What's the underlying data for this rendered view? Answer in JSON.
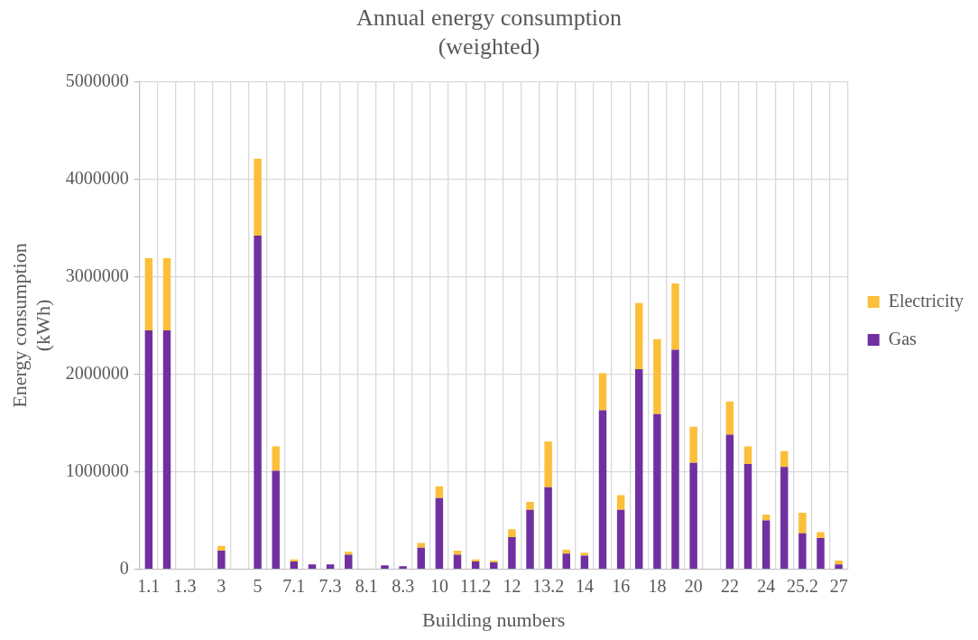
{
  "chart_data": {
    "type": "bar",
    "title": "Annual energy consumption\n(weighted)",
    "xlabel": "Building numbers",
    "ylabel": "Energy consumption\n(kWh)",
    "categories": [
      "1.1",
      null,
      "1.3",
      null,
      "3",
      null,
      "5",
      null,
      "7.1",
      null,
      "7.3",
      null,
      "8.1",
      null,
      "8.3",
      null,
      "10",
      null,
      "11.2",
      null,
      "12",
      null,
      "13.2",
      null,
      "14",
      null,
      "16",
      null,
      "18",
      null,
      "20",
      null,
      "22",
      null,
      "24",
      null,
      "25.2",
      null,
      "27"
    ],
    "stacked": true,
    "series": [
      {
        "name": "Gas",
        "color": "#7030a0",
        "values": [
          2450000,
          2450000,
          null,
          null,
          190000,
          null,
          3420000,
          1010000,
          80000,
          50000,
          50000,
          150000,
          null,
          40000,
          30000,
          220000,
          730000,
          150000,
          80000,
          70000,
          330000,
          610000,
          840000,
          160000,
          140000,
          1630000,
          610000,
          2050000,
          1590000,
          2250000,
          1090000,
          null,
          1380000,
          1080000,
          500000,
          1050000,
          370000,
          320000,
          50000
        ]
      },
      {
        "name": "Electricity",
        "color": "#fcbf3a",
        "values": [
          740000,
          740000,
          null,
          null,
          50000,
          null,
          790000,
          250000,
          20000,
          null,
          null,
          30000,
          null,
          null,
          null,
          50000,
          120000,
          40000,
          20000,
          20000,
          80000,
          80000,
          470000,
          40000,
          30000,
          380000,
          150000,
          680000,
          770000,
          680000,
          370000,
          null,
          340000,
          180000,
          60000,
          160000,
          210000,
          60000,
          40000
        ]
      }
    ],
    "ylim": [
      0,
      5000000
    ],
    "yticks": [
      0,
      1000000,
      2000000,
      3000000,
      4000000,
      5000000
    ],
    "grid": true,
    "legend": "right"
  }
}
